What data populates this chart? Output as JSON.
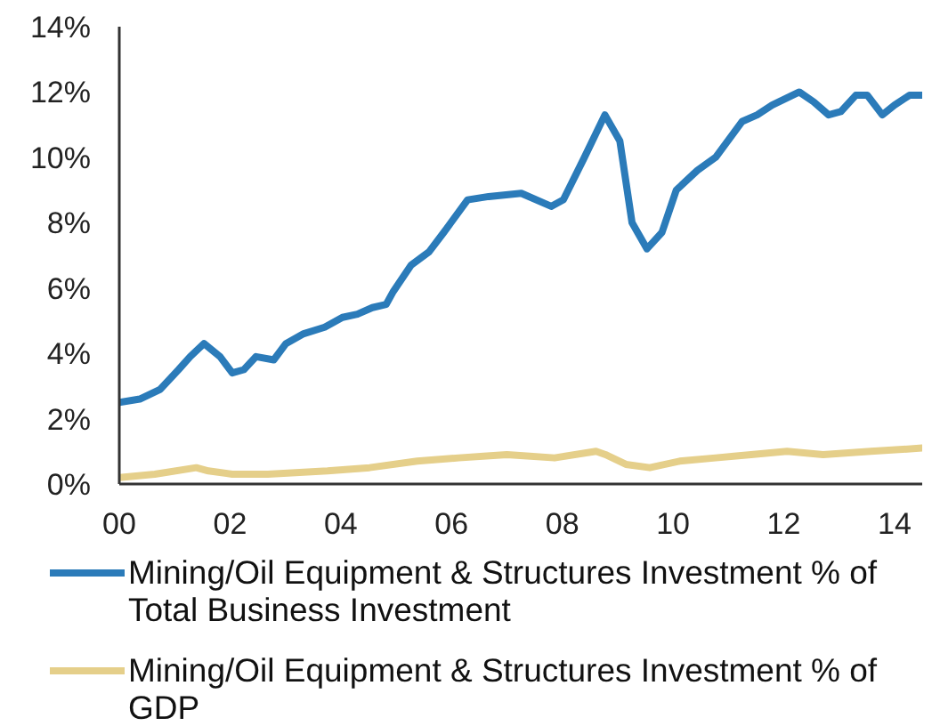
{
  "chart_data": {
    "type": "line",
    "legend": "bottom",
    "xlim": [
      2000,
      2014.5
    ],
    "xticks": [
      {
        "value": 2000,
        "label": "00"
      },
      {
        "value": 2002,
        "label": "02"
      },
      {
        "value": 2004,
        "label": "04"
      },
      {
        "value": 2006,
        "label": "06"
      },
      {
        "value": 2008,
        "label": "08"
      },
      {
        "value": 2010,
        "label": "10"
      },
      {
        "value": 2012,
        "label": "12"
      },
      {
        "value": 2014,
        "label": "14"
      }
    ],
    "ylim": [
      0,
      14
    ],
    "yticks": [
      {
        "value": 0,
        "label": "0%"
      },
      {
        "value": 2,
        "label": "2%"
      },
      {
        "value": 4,
        "label": "4%"
      },
      {
        "value": 6,
        "label": "6%"
      },
      {
        "value": 8,
        "label": "8%"
      },
      {
        "value": 10,
        "label": "10%"
      },
      {
        "value": 12,
        "label": "12%"
      },
      {
        "value": 14,
        "label": "14%"
      }
    ],
    "series": [
      {
        "name": "Mining/Oil Equipment & Structures Investment % of Total Business Investment",
        "color": "#2b7bb9",
        "x": [
          2000,
          2000.37,
          2000.74,
          2001.07,
          2001.28,
          2001.53,
          2001.82,
          2002.04,
          2002.25,
          2002.47,
          2002.79,
          2003.01,
          2003.33,
          2003.71,
          2004.03,
          2004.3,
          2004.57,
          2004.82,
          2004.95,
          2005.27,
          2005.59,
          2005.86,
          2006.29,
          2006.67,
          2007.26,
          2007.8,
          2008.02,
          2008.4,
          2008.77,
          2009.04,
          2009.26,
          2009.53,
          2009.8,
          2010.06,
          2010.44,
          2010.77,
          2011.25,
          2011.52,
          2011.79,
          2012.28,
          2012.54,
          2012.81,
          2013.03,
          2013.3,
          2013.51,
          2013.78,
          2014,
          2014.27,
          2014.5
        ],
        "values": [
          2.5,
          2.6,
          2.9,
          3.5,
          3.9,
          4.3,
          3.9,
          3.4,
          3.5,
          3.9,
          3.8,
          4.3,
          4.6,
          4.8,
          5.1,
          5.2,
          5.4,
          5.5,
          5.9,
          6.7,
          7.1,
          7.7,
          8.7,
          8.8,
          8.9,
          8.5,
          8.7,
          10.0,
          11.3,
          10.5,
          8.0,
          7.2,
          7.7,
          9.0,
          9.6,
          10.0,
          11.1,
          11.3,
          11.6,
          12.0,
          11.7,
          11.3,
          11.4,
          11.9,
          11.9,
          11.3,
          11.6,
          11.9,
          11.9
        ]
      },
      {
        "name": "Mining/Oil Equipment & Structures Investment % of GDP",
        "color": "#e5cf8a",
        "x": [
          2000,
          2000.64,
          2001.39,
          2001.61,
          2002.04,
          2002.68,
          2003.76,
          2004.52,
          2005.38,
          2006.13,
          2007,
          2007.86,
          2008.61,
          2008.78,
          2009.15,
          2009.58,
          2010.12,
          2010.77,
          2011.41,
          2012.06,
          2012.71,
          2013.57,
          2014.5
        ],
        "values": [
          0.2,
          0.3,
          0.5,
          0.4,
          0.3,
          0.3,
          0.4,
          0.5,
          0.7,
          0.8,
          0.9,
          0.8,
          1.0,
          0.9,
          0.6,
          0.5,
          0.7,
          0.8,
          0.9,
          1.0,
          0.9,
          1.0,
          1.1
        ]
      }
    ]
  }
}
